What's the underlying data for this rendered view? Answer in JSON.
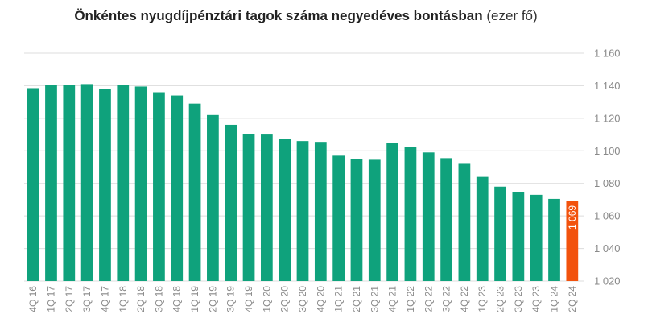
{
  "title": {
    "main": "Önkéntes nyugdíjpénztári tagok száma negyedéves bontásban",
    "unit": "(ezer fő)"
  },
  "chart_data": {
    "type": "bar",
    "title": "Önkéntes nyugdíjpénztári tagok száma negyedéves bontásban (ezer fő)",
    "xlabel": "",
    "ylabel": "",
    "ylim": [
      1020,
      1160
    ],
    "yticks": [
      1020,
      1040,
      1060,
      1080,
      1100,
      1120,
      1140,
      1160
    ],
    "ytick_labels": [
      "1 020",
      "1 040",
      "1 060",
      "1 080",
      "1 100",
      "1 120",
      "1 140",
      "1 160"
    ],
    "y_axis_position": "right",
    "grid": true,
    "categories": [
      "4Q 16",
      "1Q 17",
      "2Q 17",
      "3Q 17",
      "4Q 17",
      "1Q 18",
      "2Q 18",
      "3Q 18",
      "4Q 18",
      "1Q 19",
      "2Q 19",
      "3Q 19",
      "4Q 19",
      "1Q 20",
      "2Q 20",
      "3Q 20",
      "4Q 20",
      "1Q 21",
      "2Q 21",
      "3Q 21",
      "4Q 21",
      "1Q 22",
      "2Q 22",
      "3Q 22",
      "4Q 22",
      "1Q 23",
      "2Q 23",
      "3Q 23",
      "4Q 23",
      "1Q 24",
      "2Q 24"
    ],
    "values": [
      1138.5,
      1140.5,
      1140.5,
      1141,
      1138,
      1140.5,
      1139.5,
      1136,
      1134,
      1129,
      1122,
      1116,
      1110.5,
      1110,
      1107.5,
      1106,
      1105.5,
      1097,
      1095,
      1094.5,
      1105,
      1102.5,
      1099,
      1095.5,
      1092,
      1084,
      1078,
      1074.5,
      1073,
      1070.5,
      1069
    ],
    "data_labels": [
      {
        "category": "2Q 24",
        "text": "1 069"
      }
    ],
    "colors": {
      "bar": "#0fa27c",
      "highlight": "#f2520d",
      "grid": "#dcdcdc",
      "tick_text": "#8a8a8a"
    },
    "highlight_category": "2Q 24"
  }
}
